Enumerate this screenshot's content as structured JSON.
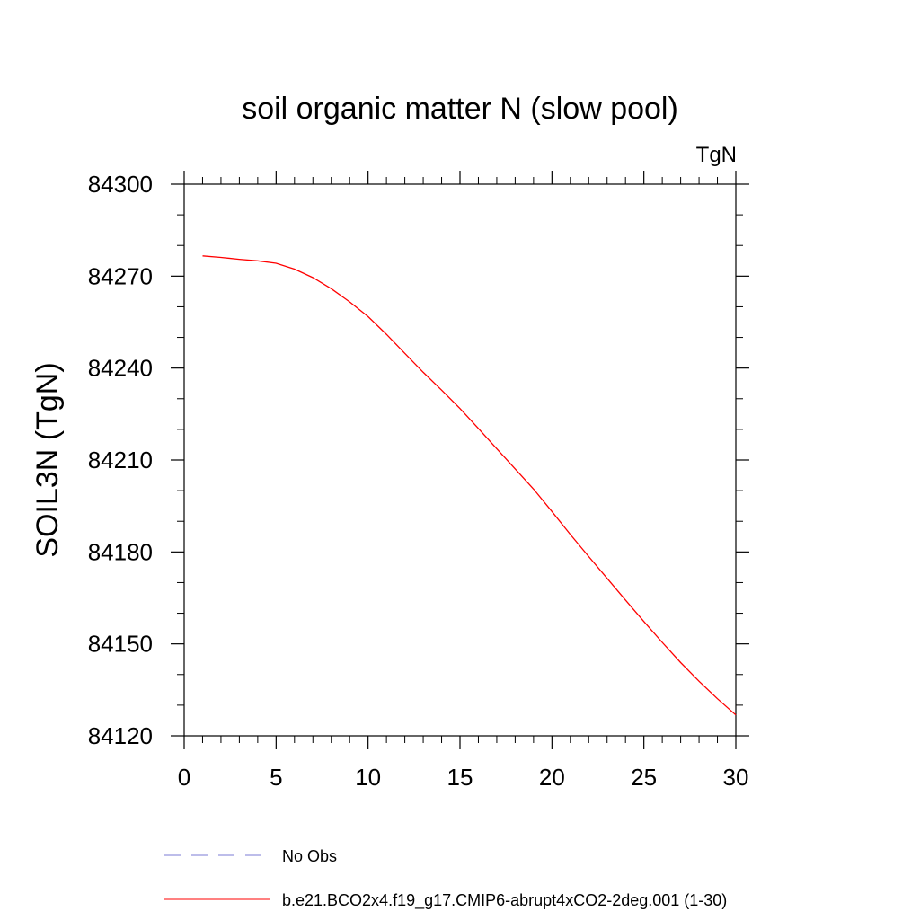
{
  "chart_data": {
    "type": "line",
    "title": "soil organic matter N (slow pool)",
    "units_label": "TgN",
    "ylabel": "SOIL3N  (TgN)",
    "xlabel": "",
    "xlim": [
      0,
      30
    ],
    "ylim": [
      84120,
      84300
    ],
    "x_ticks": [
      0,
      5,
      10,
      15,
      20,
      25,
      30
    ],
    "x_tick_labels": [
      "0",
      "5",
      "10",
      "15",
      "20",
      "25",
      "30"
    ],
    "x_minor_step": 1,
    "y_ticks": [
      84120,
      84150,
      84180,
      84210,
      84240,
      84270,
      84300
    ],
    "y_tick_labels": [
      "84120",
      "84150",
      "84180",
      "84210",
      "84240",
      "84270",
      "84300"
    ],
    "y_minor_step": 10,
    "grid": false,
    "series": [
      {
        "name": "b.e21.BCO2x4.f19_g17.CMIP6-abrupt4xCO2-2deg.001 (1-30)",
        "color": "#ff0000",
        "style": "solid",
        "x": [
          1,
          2,
          3,
          4,
          5,
          6,
          7,
          8,
          9,
          10,
          11,
          12,
          13,
          14,
          15,
          16,
          17,
          18,
          19,
          20,
          21,
          22,
          23,
          24,
          25,
          26,
          27,
          28,
          29,
          30
        ],
        "values": [
          84276.6,
          84276.1,
          84275.5,
          84275.0,
          84274.2,
          84272.3,
          84269.5,
          84265.9,
          84261.6,
          84256.8,
          84251.0,
          84244.8,
          84238.6,
          84232.8,
          84226.8,
          84220.3,
          84213.7,
          84207.1,
          84200.5,
          84193.2,
          84185.7,
          84178.5,
          84171.4,
          84164.3,
          84157.3,
          84150.5,
          84143.9,
          84137.8,
          84132.1,
          84126.8
        ]
      }
    ],
    "legend": {
      "placement": "bottom",
      "entries": [
        {
          "label": "No Obs",
          "color": "#7b7bd6",
          "style": "dashed"
        },
        {
          "label": "b.e21.BCO2x4.f19_g17.CMIP6-abrupt4xCO2-2deg.001 (1-30)",
          "color": "#ff0000",
          "style": "solid"
        }
      ]
    }
  }
}
